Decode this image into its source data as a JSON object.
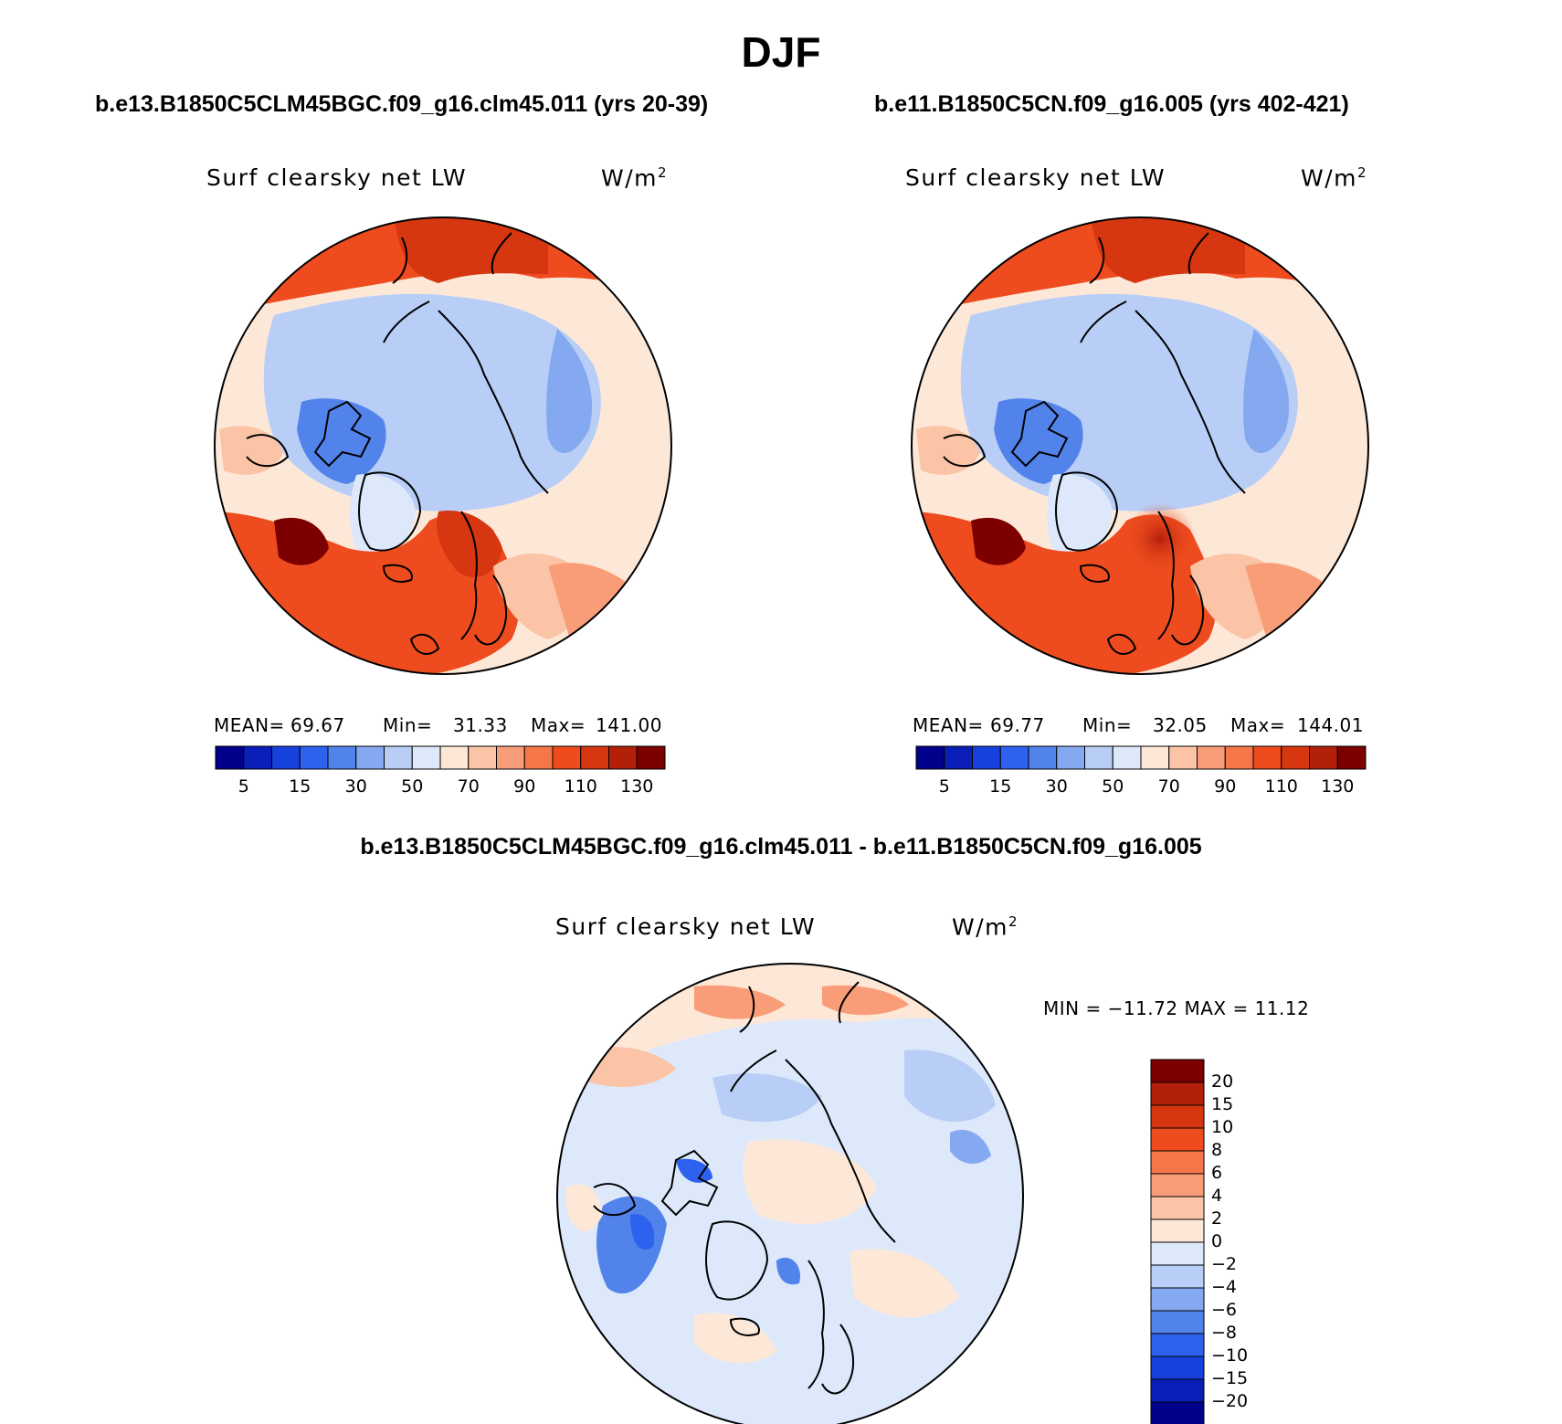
{
  "title": "DJF",
  "panels": [
    {
      "case": "b.e13.B1850C5CLM45BGC.f09_g16.clm45.011 (yrs 20-39)",
      "variable": "Surf clearsky net LW",
      "units_base": "W/m",
      "units_exp": "2",
      "stats": {
        "mean_label": "MEAN=",
        "mean": "69.67",
        "min_label": "Min=",
        "min": "31.33",
        "max_label": "Max=",
        "max": "141.00"
      }
    },
    {
      "case": "b.e11.B1850C5CN.f09_g16.005 (yrs 402-421)",
      "variable": "Surf clearsky net LW",
      "units_base": "W/m",
      "units_exp": "2",
      "stats": {
        "mean_label": "MEAN=",
        "mean": "69.77",
        "min_label": "Min=",
        "min": "32.05",
        "max_label": "Max=",
        "max": "144.01"
      }
    }
  ],
  "diff_panel": {
    "title": "b.e13.B1850C5CLM45BGC.f09_g16.clm45.011 - b.e11.B1850C5CN.f09_g16.005",
    "variable": "Surf clearsky net LW",
    "units_base": "W/m",
    "units_exp": "2",
    "minmax": "MIN = −11.72 MAX =   11.12"
  },
  "abs_colorbar": {
    "colors": [
      "#00008b",
      "#0a1fb8",
      "#1741dc",
      "#2d62ee",
      "#5283ea",
      "#85a9f0",
      "#b8cef6",
      "#dde9fb",
      "#fde8d8",
      "#fbc4a6",
      "#f89d77",
      "#f57749",
      "#ee4c1f",
      "#d63610",
      "#b3200a",
      "#7d0000"
    ],
    "tick_labels": [
      "5",
      "15",
      "30",
      "50",
      "70",
      "90",
      "110",
      "130"
    ]
  },
  "diff_colorbar": {
    "colors_top_to_bottom": [
      "#7d0000",
      "#b3200a",
      "#d63610",
      "#ee4c1f",
      "#f57749",
      "#f89d77",
      "#fbc4a6",
      "#fde8d8",
      "#dde9fb",
      "#b8cef6",
      "#85a9f0",
      "#5283ea",
      "#2d62ee",
      "#1741dc",
      "#0a1fb8",
      "#00008b"
    ],
    "tick_labels": [
      "20",
      "15",
      "10",
      "8",
      "6",
      "4",
      "2",
      "0",
      "−2",
      "−4",
      "−6",
      "−8",
      "−10",
      "−15",
      "−20"
    ]
  }
}
